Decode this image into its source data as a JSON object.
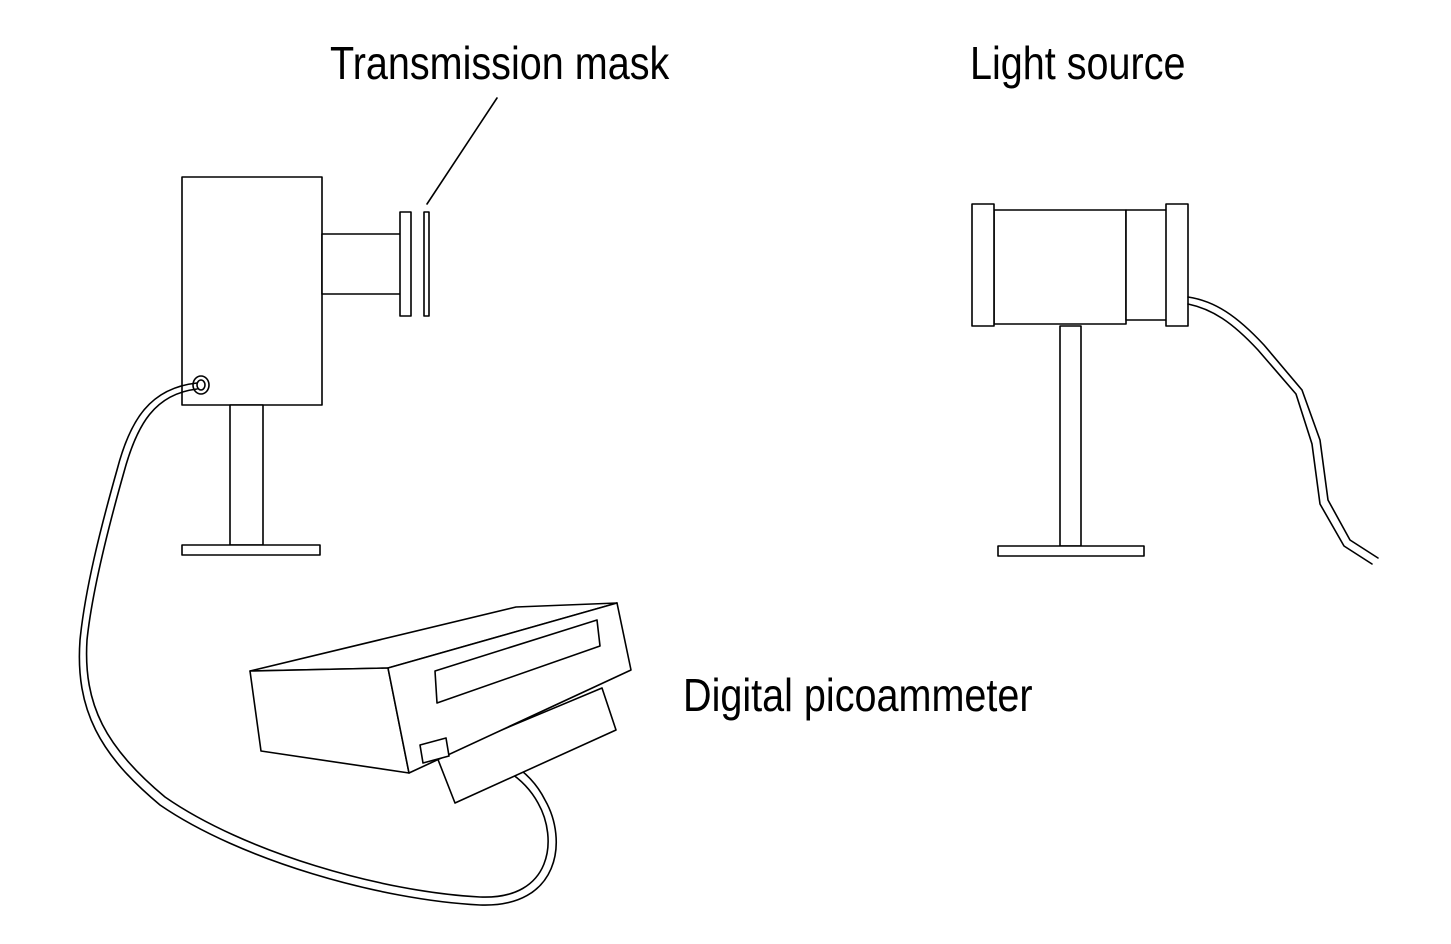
{
  "labels": {
    "transmission_mask": "Transmission mask",
    "light_source": "Light source",
    "digital_picoammeter": "Digital picoammeter"
  },
  "colors": {
    "stroke": "#000000",
    "background": "#ffffff"
  }
}
